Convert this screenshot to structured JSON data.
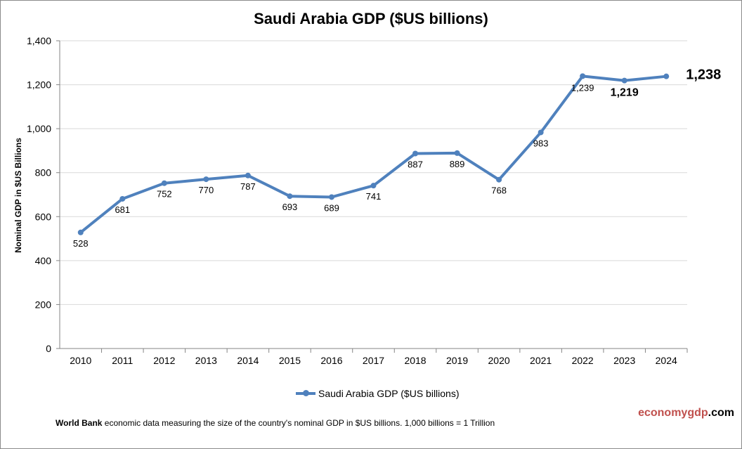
{
  "chart_data": {
    "type": "line",
    "title": "Saudi Arabia GDP ($US billions)",
    "ylabel": "Nominal GDP in $US  Billions",
    "xlabel": "",
    "categories": [
      "2010",
      "2011",
      "2012",
      "2013",
      "2014",
      "2015",
      "2016",
      "2017",
      "2018",
      "2019",
      "2020",
      "2021",
      "2022",
      "2023",
      "2024"
    ],
    "series": [
      {
        "name": "Saudi Arabia GDP ($US billions)",
        "values": [
          528,
          681,
          752,
          770,
          787,
          693,
          689,
          741,
          887,
          889,
          768,
          983,
          1239,
          1219,
          1238
        ],
        "color": "#4f81bd"
      }
    ],
    "data_labels": [
      "528",
      "681",
      "752",
      "770",
      "787",
      "693",
      "689",
      "741",
      "887",
      "889",
      "768",
      "983",
      "1,239",
      "1,219",
      "1,238"
    ],
    "ylim": [
      0,
      1400
    ],
    "yticks": [
      "0",
      "200",
      "400",
      "600",
      "800",
      "1,000",
      "1,200",
      "1,400"
    ],
    "grid": true,
    "legend": "bottom"
  },
  "footer": {
    "source_bold": "World Bank",
    "source_text": " economic data  measuring the size of the country's nominal GDP in $US billions. 1,000 billions = 1 Trillion"
  },
  "brand": {
    "part1": "economy",
    "part2": "gdp",
    "part3": ".com",
    "color1": "#c0504d"
  }
}
